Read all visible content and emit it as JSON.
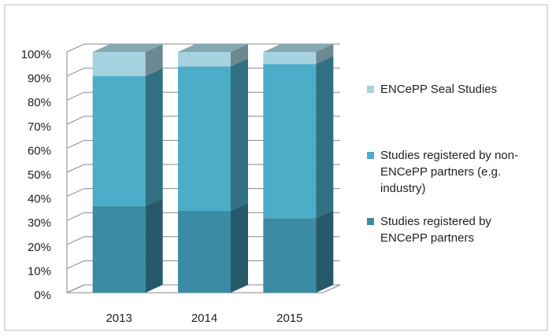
{
  "chart_data": {
    "type": "bar3d_stacked",
    "categories": [
      "2013",
      "2014",
      "2015"
    ],
    "series": [
      {
        "name": "Studies registered by ENCePP partners",
        "color": "#3a8ba3",
        "values": [
          36,
          34,
          31
        ]
      },
      {
        "name": "Studies registered by non-ENCePP partners (e.g. industry)",
        "color": "#4badc8",
        "values": [
          54,
          60,
          64
        ]
      },
      {
        "name": "ENCePP Seal Studies",
        "color": "#a6d3df",
        "values": [
          10,
          6,
          5
        ]
      }
    ],
    "ylim": [
      0,
      100
    ],
    "yticks": [
      {
        "value": 0,
        "label": "0%"
      },
      {
        "value": 10,
        "label": "10%"
      },
      {
        "value": 20,
        "label": "20%"
      },
      {
        "value": 30,
        "label": "30%"
      },
      {
        "value": 40,
        "label": "40%"
      },
      {
        "value": 50,
        "label": "50%"
      },
      {
        "value": 60,
        "label": "60%"
      },
      {
        "value": 70,
        "label": "70%"
      },
      {
        "value": 80,
        "label": "80%"
      },
      {
        "value": 90,
        "label": "90%"
      },
      {
        "value": 100,
        "label": "100%"
      }
    ],
    "grid": true
  }
}
